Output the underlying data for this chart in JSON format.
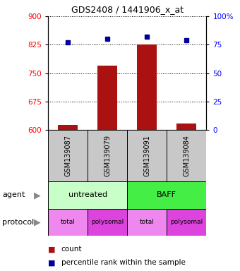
{
  "title": "GDS2408 / 1441906_x_at",
  "samples": [
    "GSM139087",
    "GSM139079",
    "GSM139091",
    "GSM139084"
  ],
  "counts": [
    613,
    770,
    825,
    618
  ],
  "percentile_ranks": [
    77,
    80,
    82,
    79
  ],
  "ylim_left": [
    600,
    900
  ],
  "yticks_left": [
    600,
    675,
    750,
    825,
    900
  ],
  "ylim_right": [
    0,
    100
  ],
  "yticks_right": [
    0,
    25,
    50,
    75,
    100
  ],
  "ytick_labels_right": [
    "0",
    "25",
    "50",
    "75",
    "100%"
  ],
  "bar_color": "#aa1111",
  "dot_color": "#000099",
  "bar_base": 600,
  "sample_box_color": "#c8c8c8",
  "agent_untreated_color": "#c8ffc8",
  "agent_baff_color": "#44ee44",
  "protocol_total_color": "#ee88ee",
  "protocol_polysomal_color": "#dd44dd",
  "legend_count_color": "#aa1111",
  "legend_prank_color": "#000099",
  "protocol_labels": [
    "total",
    "polysomal",
    "total",
    "polysomal"
  ]
}
